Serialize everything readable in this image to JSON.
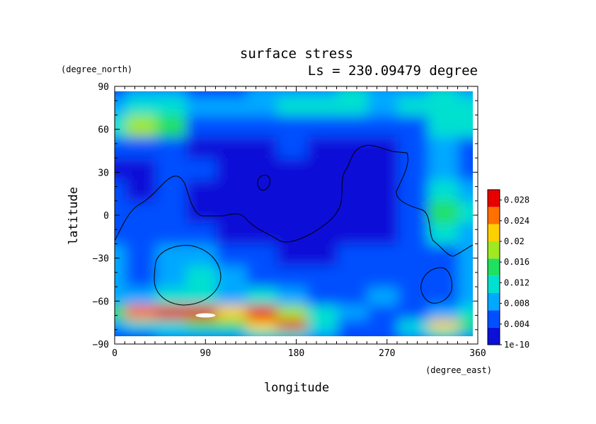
{
  "chart_data": {
    "type": "heatmap",
    "title": "surface stress",
    "subtitle": "Ls = 230.09479 degree",
    "xlabel": "longitude",
    "ylabel": "latitude",
    "x_unit": "(degree_east)",
    "y_unit": "(degree_north)",
    "xlim": [
      0,
      360
    ],
    "ylim": [
      -90,
      90
    ],
    "x_ticks": [
      0,
      90,
      180,
      270,
      360
    ],
    "y_ticks": [
      -90,
      -60,
      -30,
      0,
      30,
      60,
      90
    ],
    "colorbar": {
      "ticks": [
        "1e-10",
        "0.004",
        "0.008",
        "0.012",
        "0.016",
        "0.02",
        "0.024",
        "0.028"
      ],
      "values": [
        0,
        0.004,
        0.008,
        0.012,
        0.016,
        0.02,
        0.024,
        0.028
      ],
      "range": [
        0,
        0.03
      ],
      "colors": [
        "#0a10d8",
        "#0050ff",
        "#00a8ff",
        "#00e0d0",
        "#20e060",
        "#a0e820",
        "#ffd000",
        "#ff7000",
        "#e80000"
      ]
    },
    "field_lon": [
      0,
      30,
      60,
      90,
      120,
      150,
      180,
      210,
      240,
      270,
      300,
      330,
      360
    ],
    "field_lat": [
      85,
      75,
      60,
      45,
      30,
      15,
      0,
      -15,
      -30,
      -45,
      -60,
      -70,
      -80,
      -85
    ],
    "field_values": [
      [
        0.006,
        0.008,
        0.007,
        0.005,
        0.006,
        0.007,
        0.008,
        0.009,
        0.01,
        0.008,
        0.008,
        0.011,
        0.008
      ],
      [
        0.009,
        0.012,
        0.01,
        0.007,
        0.008,
        0.009,
        0.011,
        0.012,
        0.011,
        0.009,
        0.01,
        0.013,
        0.011
      ],
      [
        0.012,
        0.019,
        0.016,
        0.006,
        0.004,
        0.004,
        0.005,
        0.006,
        0.005,
        0.004,
        0.006,
        0.01,
        0.012
      ],
      [
        0.005,
        0.006,
        0.004,
        0.003,
        0.002,
        0.003,
        0.004,
        0.003,
        0.002,
        0.003,
        0.004,
        0.007,
        0.006
      ],
      [
        0.003,
        0.003,
        0.005,
        0.004,
        0.002,
        0.002,
        0.002,
        0.002,
        0.002,
        0.003,
        0.004,
        0.009,
        0.006
      ],
      [
        0.004,
        0.003,
        0.004,
        0.003,
        0.002,
        0.002,
        0.002,
        0.002,
        0.002,
        0.003,
        0.005,
        0.013,
        0.009
      ],
      [
        0.004,
        0.004,
        0.005,
        0.003,
        0.002,
        0.001,
        0.001,
        0.001,
        0.002,
        0.003,
        0.005,
        0.014,
        0.01
      ],
      [
        0.006,
        0.005,
        0.006,
        0.004,
        0.003,
        0.002,
        0.001,
        0.001,
        0.002,
        0.002,
        0.004,
        0.01,
        0.008
      ],
      [
        0.008,
        0.006,
        0.009,
        0.007,
        0.006,
        0.004,
        0.003,
        0.003,
        0.004,
        0.004,
        0.004,
        0.006,
        0.007
      ],
      [
        0.007,
        0.006,
        0.008,
        0.01,
        0.007,
        0.005,
        0.004,
        0.004,
        0.005,
        0.006,
        0.005,
        0.006,
        0.007
      ],
      [
        0.009,
        0.007,
        0.01,
        0.012,
        0.009,
        0.01,
        0.008,
        0.006,
        0.006,
        0.007,
        0.005,
        0.006,
        0.009
      ],
      [
        0.014,
        0.024,
        0.028,
        0.029,
        0.02,
        0.027,
        0.019,
        0.01,
        0.007,
        0.005,
        0.006,
        0.008,
        0.012
      ],
      [
        0.008,
        0.01,
        0.012,
        0.014,
        0.015,
        0.02,
        0.028,
        0.01,
        0.006,
        0.005,
        0.012,
        0.02,
        0.014
      ],
      [
        0.005,
        0.006,
        0.007,
        0.008,
        0.008,
        0.01,
        0.012,
        0.007,
        0.005,
        0.004,
        0.008,
        0.012,
        0.009
      ]
    ]
  }
}
